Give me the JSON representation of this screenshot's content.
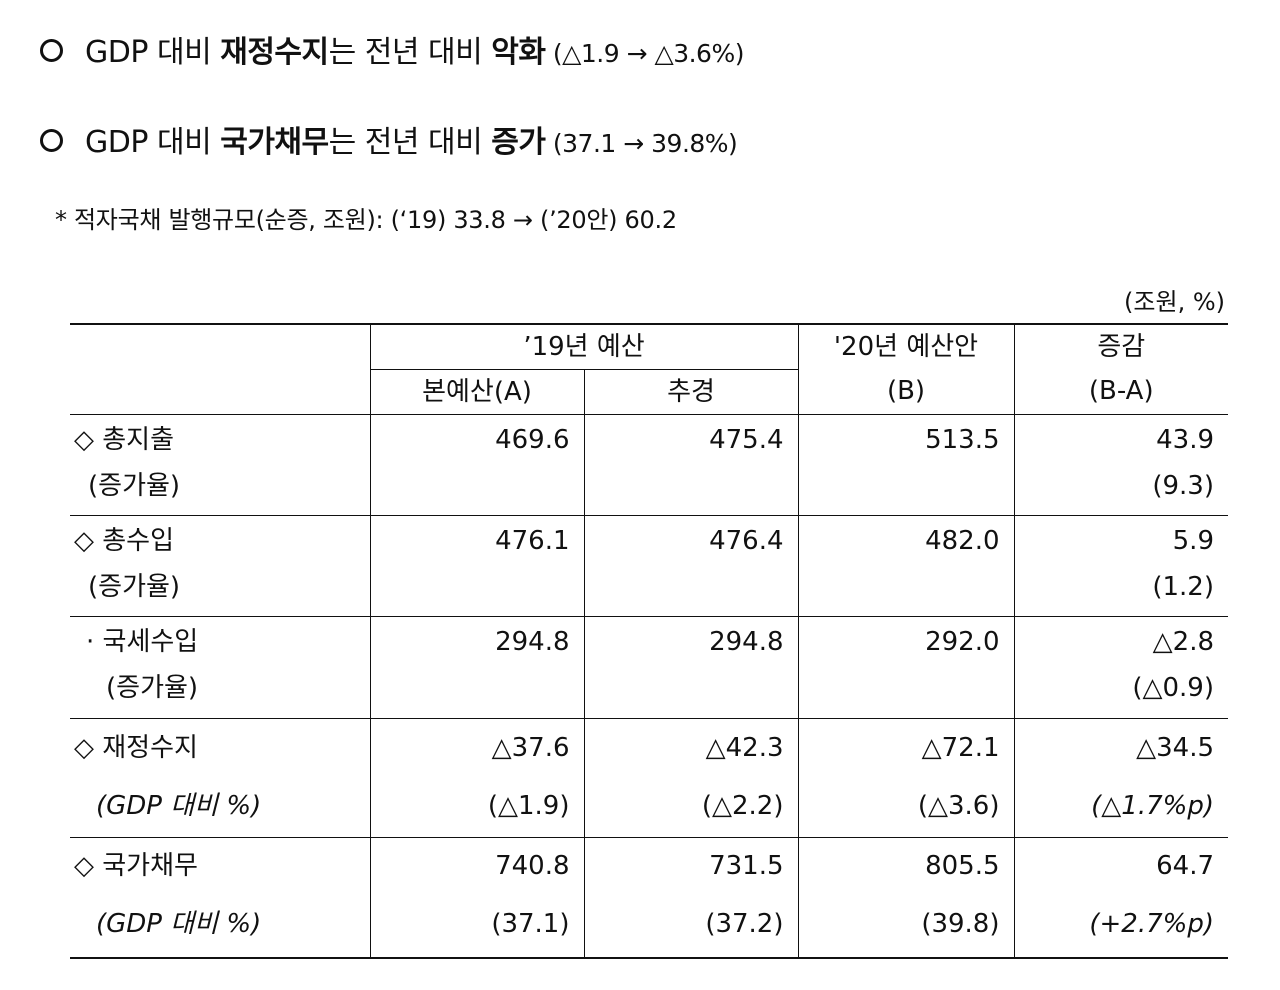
{
  "headline1": {
    "prefix": "GDP 대비 ",
    "bold1": "재정수지",
    "mid": "는 전년 대비 ",
    "bold2": "악화",
    "paren": " (△1.9 → △3.6%)"
  },
  "headline2": {
    "prefix": "GDP 대비 ",
    "bold1": "국가채무",
    "mid": "는 전년 대비 ",
    "bold2": "증가",
    "paren": " (37.1 → 39.8%)"
  },
  "note": "* 적자국채 발행규모(순증, 조원): (‘19) 33.8 → (’20안) 60.2",
  "unit": "(조원, %)",
  "table": {
    "header": {
      "budget19": "’19년 예산",
      "main": "본예산(A)",
      "supp": "추경",
      "plan20_l1": "'20년 예산안",
      "plan20_l2": "(B)",
      "diff_l1": "증감",
      "diff_l2": "(B-A)"
    },
    "rows": [
      {
        "label": "◇ 총지출",
        "sub": "(증가율)",
        "a": "469.6",
        "s": "475.4",
        "b": "513.5",
        "d": "43.9",
        "a2": "",
        "s2": "",
        "b2": "",
        "d2": "(9.3)"
      },
      {
        "label": "◇ 총수입",
        "sub": "(증가율)",
        "a": "476.1",
        "s": "476.4",
        "b": "482.0",
        "d": "5.9",
        "a2": "",
        "s2": "",
        "b2": "",
        "d2": "(1.2)"
      },
      {
        "label": "· 국세수입",
        "sub": "(증가율)",
        "a": "294.8",
        "s": "294.8",
        "b": "292.0",
        "d": "△2.8",
        "a2": "",
        "s2": "",
        "b2": "",
        "d2": "(△0.9)"
      },
      {
        "label": "◇ 재정수지",
        "sub": "(GDP 대비 %)",
        "a": "△37.6",
        "s": "△42.3",
        "b": "△72.1",
        "d": "△34.5",
        "a2": "(△1.9)",
        "s2": "(△2.2)",
        "b2": "(△3.6)",
        "d2": "(△1.7%p)"
      },
      {
        "label": "◇ 국가채무",
        "sub": "(GDP 대비 %)",
        "a": "740.8",
        "s": "731.5",
        "b": "805.5",
        "d": "64.7",
        "a2": "(37.1)",
        "s2": "(37.2)",
        "b2": "(39.8)",
        "d2": "(+2.7%p)"
      }
    ]
  }
}
